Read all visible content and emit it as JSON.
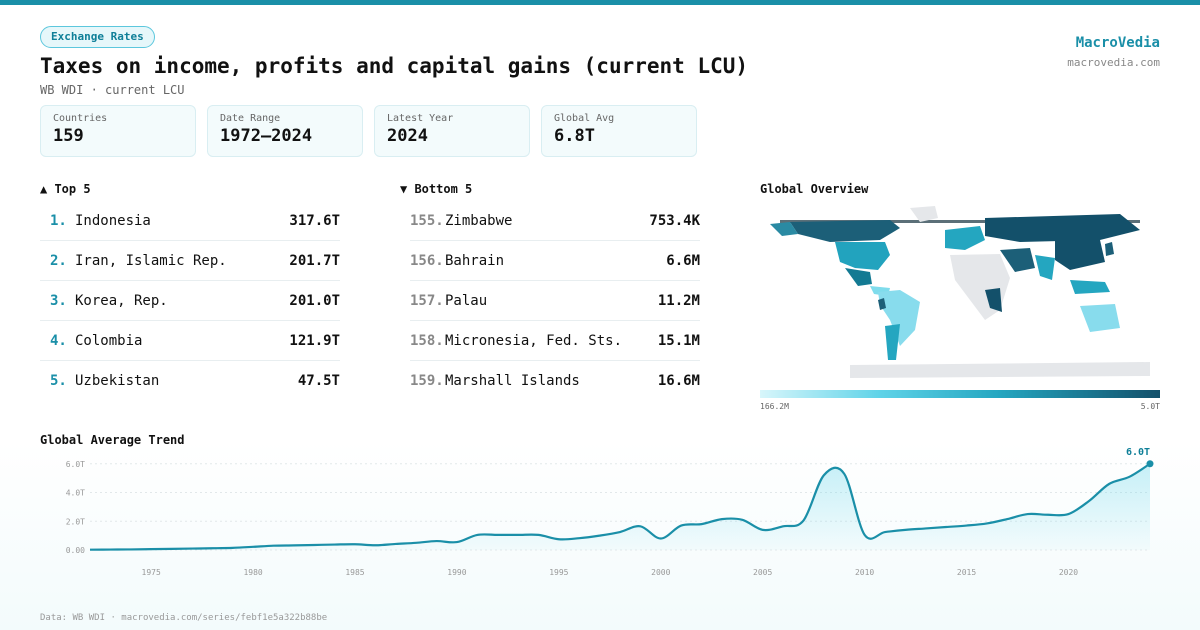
{
  "header": {
    "badge": "Exchange Rates",
    "title": "Taxes on income, profits and capital gains (current LCU)",
    "subtitle": "WB WDI · current LCU",
    "brand": "MacroVedia",
    "brand_url": "macrovedia.com"
  },
  "stats": [
    {
      "label": "Countries",
      "value": "159"
    },
    {
      "label": "Date Range",
      "value": "1972–2024"
    },
    {
      "label": "Latest Year",
      "value": "2024"
    },
    {
      "label": "Global Avg",
      "value": "6.8T"
    }
  ],
  "top5": {
    "heading": "▲ Top 5",
    "items": [
      {
        "rank": "1.",
        "country": "Indonesia",
        "value": "317.6T"
      },
      {
        "rank": "2.",
        "country": "Iran, Islamic Rep.",
        "value": "201.7T"
      },
      {
        "rank": "3.",
        "country": "Korea, Rep.",
        "value": "201.0T"
      },
      {
        "rank": "4.",
        "country": "Colombia",
        "value": "121.9T"
      },
      {
        "rank": "5.",
        "country": "Uzbekistan",
        "value": "47.5T"
      }
    ]
  },
  "bottom5": {
    "heading": "▼ Bottom 5",
    "items": [
      {
        "rank": "155.",
        "country": "Zimbabwe",
        "value": "753.4K"
      },
      {
        "rank": "156.",
        "country": "Bahrain",
        "value": "6.6M"
      },
      {
        "rank": "157.",
        "country": "Palau",
        "value": "11.2M"
      },
      {
        "rank": "158.",
        "country": "Micronesia, Fed. Sts.",
        "value": "15.1M"
      },
      {
        "rank": "159.",
        "country": "Marshall Islands",
        "value": "16.6M"
      }
    ]
  },
  "map": {
    "title": "Global Overview",
    "legend_min": "166.2M",
    "legend_max": "5.0T",
    "colors": [
      "#d8f6fb",
      "#5fd3e8",
      "#24a6c0",
      "#13506a"
    ]
  },
  "footer": "Data: WB WDI · macrovedia.com/series/febf1e5a322b88be",
  "chart_data": {
    "type": "area",
    "title": "Global Average Trend",
    "ylim": [
      0,
      6.4
    ],
    "yticks": [
      0,
      2,
      4,
      6
    ],
    "ytick_labels": [
      "0.00",
      "2.0T",
      "4.0T",
      "6.0T"
    ],
    "xlim": [
      1972,
      2024
    ],
    "xticks": [
      1975,
      1980,
      1985,
      1990,
      1995,
      2000,
      2005,
      2010,
      2015,
      2020
    ],
    "end_label": "6.0T",
    "color": "#1a8fa8",
    "x": [
      1972,
      1973,
      1974,
      1975,
      1976,
      1977,
      1978,
      1979,
      1980,
      1981,
      1982,
      1983,
      1984,
      1985,
      1986,
      1987,
      1988,
      1989,
      1990,
      1991,
      1992,
      1993,
      1994,
      1995,
      1996,
      1997,
      1998,
      1999,
      2000,
      2001,
      2002,
      2003,
      2004,
      2005,
      2006,
      2007,
      2008,
      2009,
      2010,
      2011,
      2012,
      2013,
      2014,
      2015,
      2016,
      2017,
      2018,
      2019,
      2020,
      2021,
      2022,
      2023,
      2024
    ],
    "values": [
      0.02,
      0.03,
      0.04,
      0.06,
      0.08,
      0.1,
      0.12,
      0.15,
      0.22,
      0.3,
      0.32,
      0.35,
      0.38,
      0.4,
      0.33,
      0.42,
      0.5,
      0.62,
      0.55,
      1.05,
      1.05,
      1.05,
      1.05,
      0.75,
      0.82,
      1.0,
      1.25,
      1.65,
      0.8,
      1.7,
      1.8,
      2.15,
      2.1,
      1.4,
      1.65,
      2.05,
      5.2,
      5.3,
      1.05,
      1.25,
      1.4,
      1.5,
      1.6,
      1.7,
      1.85,
      2.15,
      2.5,
      2.45,
      2.5,
      3.4,
      4.6,
      5.1,
      6.0
    ]
  }
}
